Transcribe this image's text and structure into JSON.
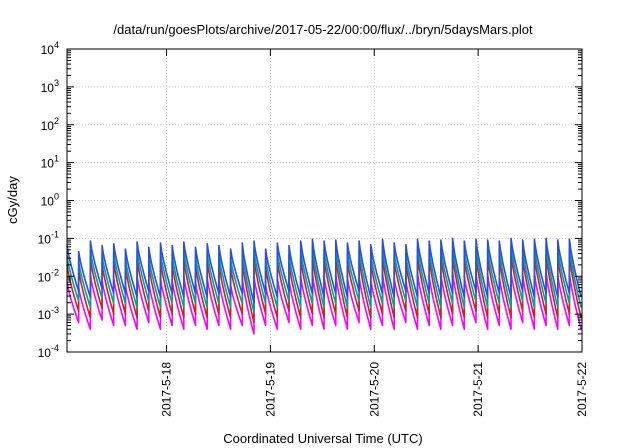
{
  "chart_data": {
    "type": "line",
    "title": "/data/run/goesPlots/archive/2017-05-22/00:00/flux/../bryn/5daysMars.plot",
    "xlabel": "Coordinated Universal Time (UTC)",
    "ylabel": "cGy/day",
    "yscale": "log",
    "ylim": [
      0.0001,
      10000
    ],
    "xlim": [
      "2017-05-17T01:00",
      "2017-05-22T00:00"
    ],
    "grid": true,
    "y_ticks": [
      {
        "base": "10",
        "exp": "-4"
      },
      {
        "base": "10",
        "exp": "-3"
      },
      {
        "base": "10",
        "exp": "-2"
      },
      {
        "base": "10",
        "exp": "-1"
      },
      {
        "base": "10",
        "exp": "0"
      },
      {
        "base": "10",
        "exp": "1"
      },
      {
        "base": "10",
        "exp": "2"
      },
      {
        "base": "10",
        "exp": "3"
      },
      {
        "base": "10",
        "exp": "4"
      }
    ],
    "x_ticks": [
      "2017-5-18",
      "2017-5-19",
      "2017-5-20",
      "2017-5-21",
      "2017-5-22"
    ],
    "cycle_hours": 2.7,
    "series": [
      {
        "color": "#ff00ff",
        "peaks": [
          0.007,
          0.005,
          0.011,
          0.008,
          0.009,
          0.006,
          0.01,
          0.007,
          0.009,
          0.008,
          0.01,
          0.007,
          0.009,
          0.008,
          0.006,
          0.009,
          0.01,
          0.006,
          0.009,
          0.008,
          0.01,
          0.012,
          0.01,
          0.011,
          0.009,
          0.01,
          0.008,
          0.012,
          0.009,
          0.008,
          0.012,
          0.01,
          0.011,
          0.013,
          0.01,
          0.012,
          0.011,
          0.01,
          0.013,
          0.011,
          0.012,
          0.013,
          0.011,
          0.012
        ],
        "troughs": [
          0.0006,
          0.0004,
          0.0007,
          0.0005,
          0.0005,
          0.0004,
          0.0006,
          0.0004,
          0.0005,
          0.0004,
          0.0005,
          0.0004,
          0.0005,
          0.0004,
          0.0005,
          0.0003,
          0.0005,
          0.0004,
          0.0006,
          0.0004,
          0.0005,
          0.0004,
          0.0005,
          0.0004,
          0.0006,
          0.0004,
          0.0005,
          0.0004,
          0.0006,
          0.0004,
          0.0005,
          0.0004,
          0.0005,
          0.0004,
          0.0006,
          0.0004,
          0.0005,
          0.0004,
          0.0006,
          0.0004,
          0.0005,
          0.0004,
          0.0005,
          0.0004
        ]
      },
      {
        "color": "#cc2222",
        "peaks": [
          0.02,
          0.015,
          0.03,
          0.022,
          0.025,
          0.018,
          0.028,
          0.02,
          0.026,
          0.022,
          0.028,
          0.02,
          0.025,
          0.022,
          0.018,
          0.026,
          0.03,
          0.018,
          0.026,
          0.022,
          0.03,
          0.035,
          0.03,
          0.032,
          0.026,
          0.03,
          0.024,
          0.035,
          0.026,
          0.024,
          0.035,
          0.03,
          0.032,
          0.038,
          0.03,
          0.035,
          0.032,
          0.03,
          0.038,
          0.032,
          0.035,
          0.038,
          0.032,
          0.035
        ],
        "troughs": [
          0.0012,
          0.0008,
          0.0014,
          0.001,
          0.001,
          0.0008,
          0.0012,
          0.0008,
          0.001,
          0.0008,
          0.001,
          0.0008,
          0.001,
          0.0008,
          0.001,
          0.0006,
          0.001,
          0.0008,
          0.0012,
          0.0008,
          0.001,
          0.0008,
          0.001,
          0.0008,
          0.0012,
          0.0008,
          0.001,
          0.0008,
          0.0012,
          0.0008,
          0.001,
          0.0008,
          0.001,
          0.0008,
          0.0012,
          0.0008,
          0.001,
          0.0008,
          0.0012,
          0.0008,
          0.001,
          0.0008,
          0.001,
          0.0008
        ]
      },
      {
        "color": "#00a0a0",
        "peaks": [
          0.035,
          0.025,
          0.05,
          0.038,
          0.042,
          0.03,
          0.048,
          0.034,
          0.044,
          0.038,
          0.048,
          0.034,
          0.042,
          0.038,
          0.03,
          0.044,
          0.05,
          0.03,
          0.044,
          0.038,
          0.05,
          0.058,
          0.05,
          0.054,
          0.044,
          0.05,
          0.04,
          0.058,
          0.044,
          0.04,
          0.058,
          0.05,
          0.054,
          0.062,
          0.05,
          0.058,
          0.054,
          0.05,
          0.062,
          0.054,
          0.058,
          0.062,
          0.054,
          0.058
        ],
        "troughs": [
          0.0022,
          0.0015,
          0.0026,
          0.0019,
          0.0019,
          0.0015,
          0.0022,
          0.0015,
          0.0019,
          0.0015,
          0.0019,
          0.0015,
          0.0019,
          0.0015,
          0.0019,
          0.0011,
          0.0019,
          0.0015,
          0.0022,
          0.0015,
          0.0019,
          0.0015,
          0.0019,
          0.0015,
          0.0022,
          0.0015,
          0.0019,
          0.0015,
          0.0022,
          0.0015,
          0.0019,
          0.0015,
          0.0019,
          0.0015,
          0.0022,
          0.0015,
          0.0019,
          0.0015,
          0.0022,
          0.0015,
          0.0019,
          0.0015,
          0.0019,
          0.0015
        ]
      },
      {
        "color": "#2a4fd8",
        "peaks": [
          0.065,
          0.045,
          0.085,
          0.065,
          0.072,
          0.052,
          0.08,
          0.058,
          0.075,
          0.065,
          0.08,
          0.058,
          0.072,
          0.065,
          0.052,
          0.075,
          0.085,
          0.052,
          0.075,
          0.065,
          0.085,
          0.095,
          0.085,
          0.09,
          0.075,
          0.085,
          0.068,
          0.095,
          0.075,
          0.068,
          0.095,
          0.085,
          0.09,
          0.1,
          0.085,
          0.095,
          0.09,
          0.085,
          0.1,
          0.09,
          0.095,
          0.1,
          0.09,
          0.095
        ],
        "troughs": [
          0.004,
          0.0028,
          0.0048,
          0.0035,
          0.0035,
          0.0028,
          0.004,
          0.0028,
          0.0035,
          0.0028,
          0.0035,
          0.0028,
          0.0035,
          0.0028,
          0.0035,
          0.002,
          0.0035,
          0.0028,
          0.004,
          0.0028,
          0.0035,
          0.0028,
          0.0035,
          0.0028,
          0.004,
          0.0028,
          0.0035,
          0.0028,
          0.004,
          0.0028,
          0.0035,
          0.0028,
          0.0035,
          0.0028,
          0.004,
          0.0028,
          0.0035,
          0.0028,
          0.004,
          0.0028,
          0.0035,
          0.0028,
          0.0035,
          0.0028
        ]
      }
    ]
  }
}
